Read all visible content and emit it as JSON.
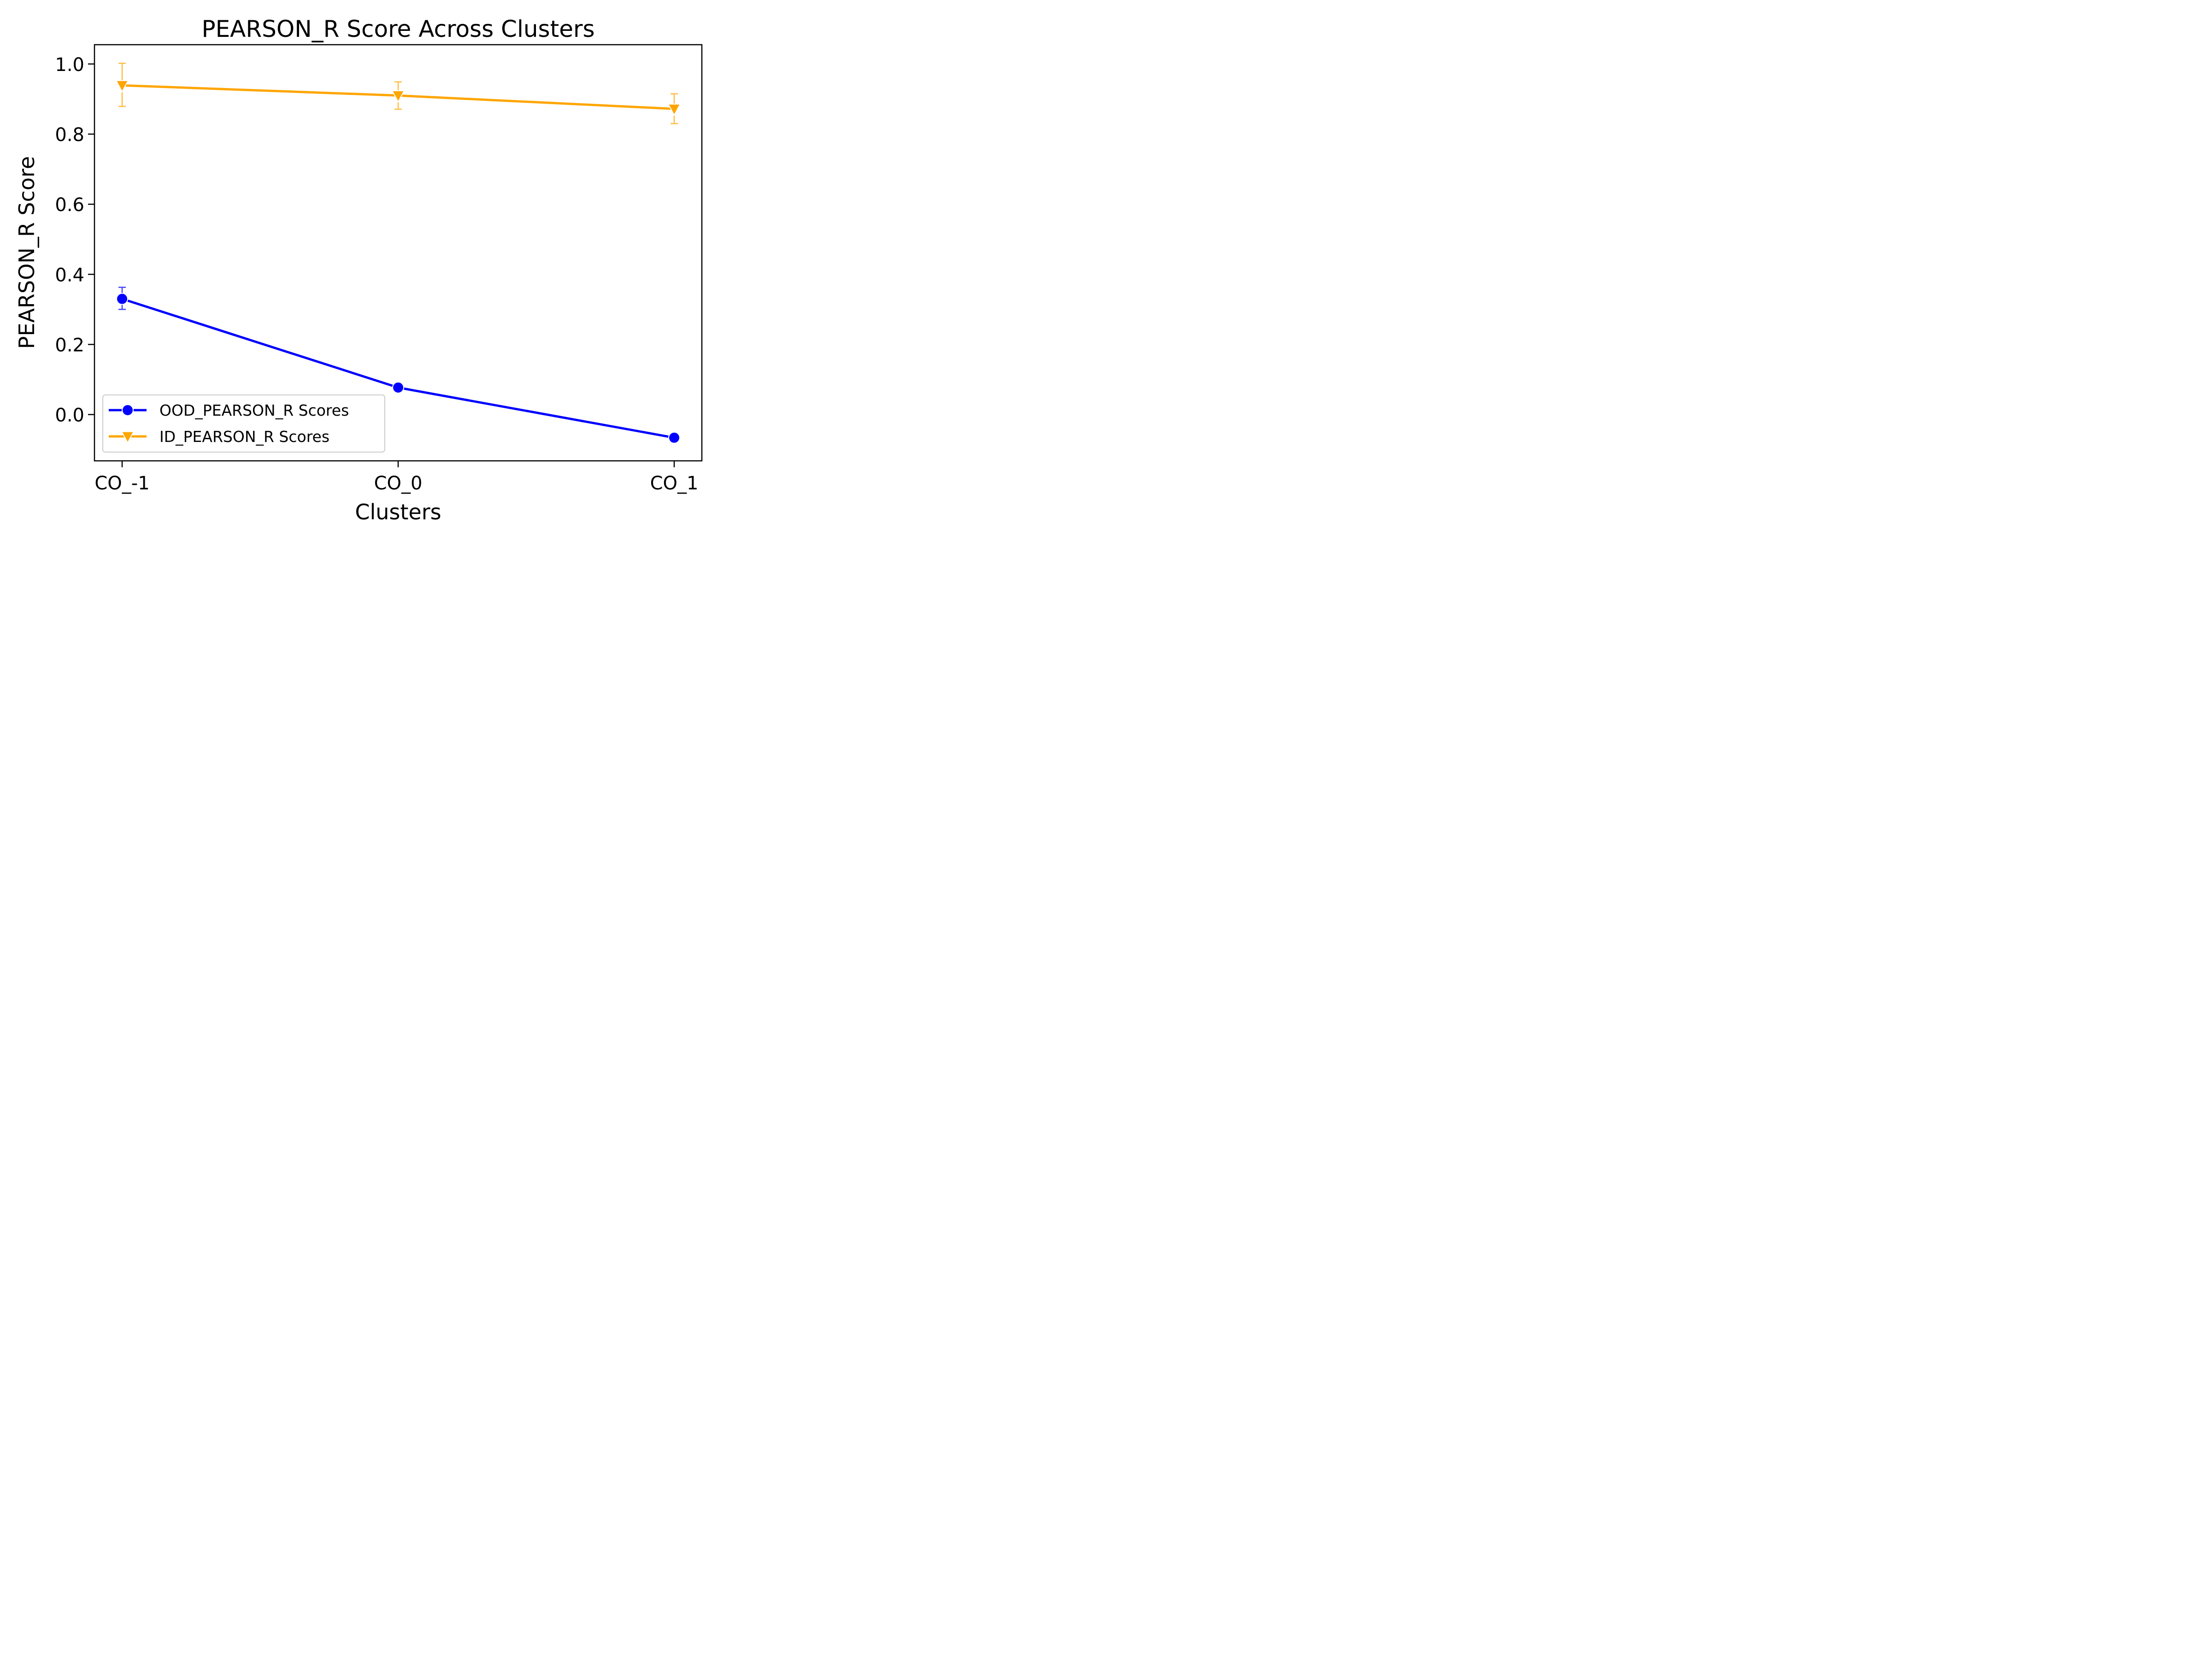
{
  "chart_data": {
    "type": "line",
    "title": "PEARSON_R Score Across Clusters",
    "xlabel": "Clusters",
    "ylabel": "PEARSON_R Score",
    "categories": [
      "CO_-1",
      "CO_0",
      "CO_1"
    ],
    "ylim": [
      -0.132,
      1.055
    ],
    "yticks": [
      0.0,
      0.2,
      0.4,
      0.6,
      0.8,
      1.0
    ],
    "ytick_labels": [
      "0.0",
      "0.2",
      "0.4",
      "0.6",
      "0.8",
      "1.0"
    ],
    "grid": false,
    "legend_position": "lower-left",
    "series": [
      {
        "name": "OOD_PEARSON_R Scores",
        "color": "#0000ff",
        "marker": "circle",
        "values": [
          0.33,
          0.077,
          -0.066
        ],
        "err_low": [
          0.3,
          0.077,
          -0.066
        ],
        "err_high": [
          0.363,
          0.077,
          -0.066
        ]
      },
      {
        "name": "ID_PEARSON_R Scores",
        "color": "#ffa500",
        "marker": "triangle-down",
        "values": [
          0.939,
          0.91,
          0.872
        ],
        "err_low": [
          0.879,
          0.871,
          0.83
        ],
        "err_high": [
          1.002,
          0.949,
          0.915
        ]
      }
    ]
  }
}
